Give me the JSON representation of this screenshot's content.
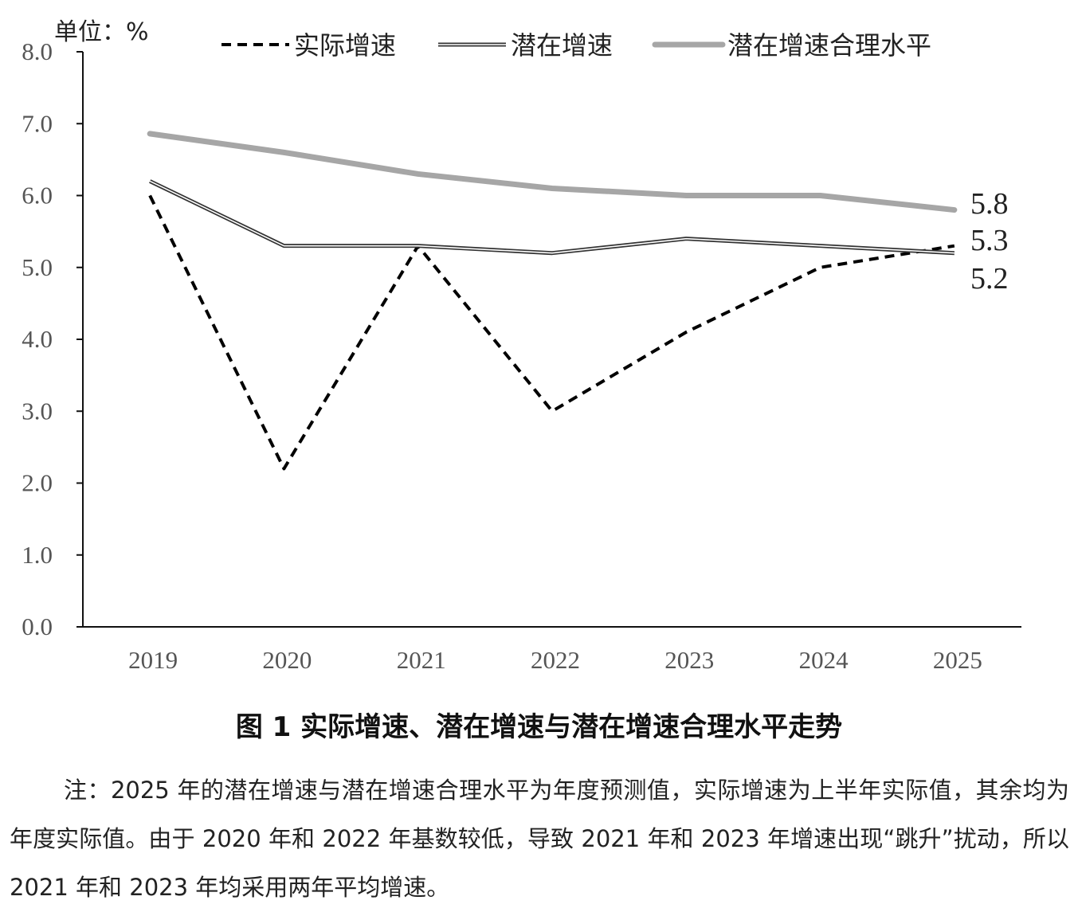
{
  "chart_data": {
    "type": "line",
    "unit_label": "单位：%",
    "categories": [
      "2019",
      "2020",
      "2021",
      "2022",
      "2023",
      "2024",
      "2025"
    ],
    "y_ticks": [
      "0.0",
      "1.0",
      "2.0",
      "3.0",
      "4.0",
      "5.0",
      "6.0",
      "7.0",
      "8.0"
    ],
    "ylim": [
      0,
      8
    ],
    "grid": false,
    "legend_position": "top",
    "series": [
      {
        "name": "实际增速",
        "style": "dashed",
        "color": "#000000",
        "values": [
          6.0,
          2.2,
          5.3,
          3.0,
          4.1,
          5.0,
          5.3
        ],
        "end_label": "5.3"
      },
      {
        "name": "潜在增速",
        "style": "double",
        "color": "#333333",
        "values": [
          6.2,
          5.3,
          5.3,
          5.2,
          5.4,
          5.3,
          5.2
        ],
        "end_label": "5.2"
      },
      {
        "name": "潜在增速合理水平",
        "style": "thick",
        "color": "#a6a6a6",
        "values": [
          6.86,
          6.6,
          6.3,
          6.1,
          6.0,
          6.0,
          5.8
        ],
        "end_label": "5.8"
      }
    ]
  },
  "caption": "图 1  实际增速、潜在增速与潜在增速合理水平走势",
  "note": "注：2025 年的潜在增速与潜在增速合理水平为年度预测值，实际增速为上半年实际值，其余均为年度实际值。由于 2020 年和 2022 年基数较低，导致 2021 年和 2023 年增速出现“跳升”扰动，所以 2021 年和 2023 年均采用两年平均增速。"
}
